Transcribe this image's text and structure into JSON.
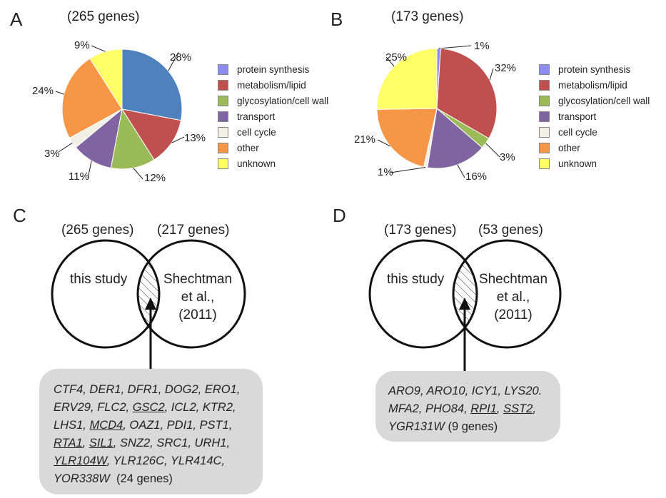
{
  "panels": {
    "A": {
      "letter": "A",
      "gene_count": "(265 genes)"
    },
    "B": {
      "letter": "B",
      "gene_count": "(173 genes)"
    },
    "C": {
      "letter": "C",
      "left_count": "(265 genes)",
      "right_count": "(217 genes)",
      "left_label": "this study",
      "right_label_lines": [
        "Shechtman",
        "et al.,",
        "(2011)"
      ]
    },
    "D": {
      "letter": "D",
      "left_count": "(173 genes)",
      "right_count": "(53 genes)",
      "left_label": "this study",
      "right_label_lines": [
        "Shechtman",
        "et al.,",
        "(2011)"
      ]
    }
  },
  "legend_items": [
    "protein synthesis",
    "metabolism/lipid",
    "glycosylation/cell wall",
    "transport",
    "cell cycle",
    "other",
    "unknown"
  ],
  "colors": {
    "protein synthesis": "#8C8CF2",
    "metabolism/lipid": "#C0504D",
    "glycosylation/cell wall": "#9BBB59",
    "transport": "#8064A2",
    "cell cycle": "#F2F0E6",
    "other": "#F79646",
    "unknown": "#FFFF66",
    "A_first_slice": "#4F81BD"
  },
  "chart_data": [
    {
      "type": "pie",
      "panel": "A",
      "slices": [
        {
          "category": "protein synthesis",
          "value": 28,
          "label": "28%"
        },
        {
          "category": "metabolism/lipid",
          "value": 13,
          "label": "13%"
        },
        {
          "category": "glycosylation/cell wall",
          "value": 12,
          "label": "12%"
        },
        {
          "category": "transport",
          "value": 11,
          "label": "11%"
        },
        {
          "category": "cell cycle",
          "value": 3,
          "label": "3%"
        },
        {
          "category": "other",
          "value": 24,
          "label": "24%"
        },
        {
          "category": "unknown",
          "value": 9,
          "label": "9%"
        }
      ]
    },
    {
      "type": "pie",
      "panel": "B",
      "slices": [
        {
          "category": "protein synthesis",
          "value": 1,
          "label": "1%"
        },
        {
          "category": "metabolism/lipid",
          "value": 32,
          "label": "32%"
        },
        {
          "category": "glycosylation/cell wall",
          "value": 3,
          "label": "3%"
        },
        {
          "category": "transport",
          "value": 16,
          "label": "16%"
        },
        {
          "category": "cell cycle",
          "value": 1,
          "label": "1%"
        },
        {
          "category": "other",
          "value": 21,
          "label": "21%"
        },
        {
          "category": "unknown",
          "value": 25,
          "label": "25%"
        }
      ]
    }
  ],
  "gene_lists": {
    "C": [
      [
        {
          "t": "CTF4"
        },
        {
          "t": ", "
        },
        {
          "t": "DER1"
        },
        {
          "t": ", "
        },
        {
          "t": "DFR1"
        },
        {
          "t": ", "
        },
        {
          "t": "DOG2"
        },
        {
          "t": ", "
        },
        {
          "t": "ERO1"
        },
        {
          "t": ","
        }
      ],
      [
        {
          "t": "ERV29"
        },
        {
          "t": ", "
        },
        {
          "t": "FLC2"
        },
        {
          "t": ", "
        },
        {
          "t": "GSC2",
          "u": true
        },
        {
          "t": ", "
        },
        {
          "t": "ICL2"
        },
        {
          "t": ", "
        },
        {
          "t": "KTR2"
        },
        {
          "t": ","
        }
      ],
      [
        {
          "t": "LHS1"
        },
        {
          "t": ", "
        },
        {
          "t": "MCD4",
          "u": true
        },
        {
          "t": ", "
        },
        {
          "t": "OAZ1"
        },
        {
          "t": ", "
        },
        {
          "t": "PDI1"
        },
        {
          "t": ", "
        },
        {
          "t": "PST1"
        },
        {
          "t": ","
        }
      ],
      [
        {
          "t": "RTA1",
          "u": true
        },
        {
          "t": ", "
        },
        {
          "t": "SIL1",
          "u": true
        },
        {
          "t": ", "
        },
        {
          "t": "SNZ2"
        },
        {
          "t": ", "
        },
        {
          "t": "SRC1"
        },
        {
          "t": ", "
        },
        {
          "t": "URH1"
        },
        {
          "t": ","
        }
      ],
      [
        {
          "t": "YLR104W",
          "u": true
        },
        {
          "t": ", "
        },
        {
          "t": "YLR126C"
        },
        {
          "t": ", "
        },
        {
          "t": "YLR414C"
        },
        {
          "t": ","
        }
      ],
      [
        {
          "t": "YOR338W"
        },
        {
          "t": "  (24 genes)",
          "n": true
        }
      ]
    ],
    "D": [
      [
        {
          "t": "ARO9"
        },
        {
          "t": ", "
        },
        {
          "t": "ARO10"
        },
        {
          "t": ", "
        },
        {
          "t": "ICY1"
        },
        {
          "t": ", "
        },
        {
          "t": "LYS20."
        }
      ],
      [
        {
          "t": "MFA2"
        },
        {
          "t": ", "
        },
        {
          "t": "PHO84"
        },
        {
          "t": ", "
        },
        {
          "t": "RPI1",
          "u": true
        },
        {
          "t": ", "
        },
        {
          "t": "SST2",
          "u": true
        },
        {
          "t": ","
        }
      ],
      [
        {
          "t": "YGR131W"
        },
        {
          "t": " (9 genes)",
          "n": true
        }
      ]
    ]
  }
}
